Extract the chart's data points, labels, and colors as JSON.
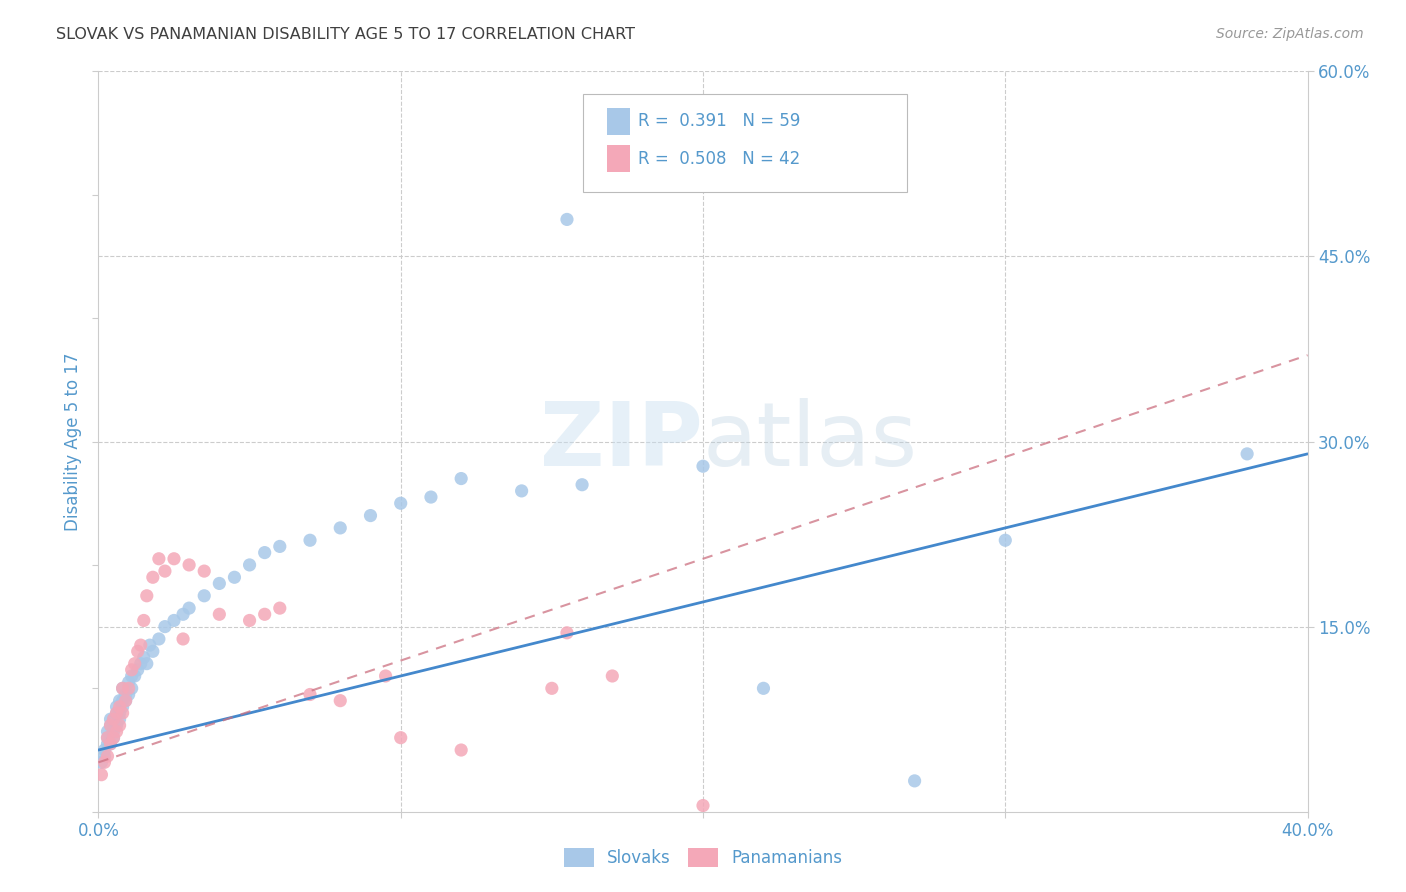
{
  "title": "SLOVAK VS PANAMANIAN DISABILITY AGE 5 TO 17 CORRELATION CHART",
  "source": "Source: ZipAtlas.com",
  "ylabel": "Disability Age 5 to 17",
  "xlim": [
    0.0,
    0.4
  ],
  "ylim": [
    0.0,
    0.6
  ],
  "watermark": "ZIPatlas",
  "legend_R1": "0.391",
  "legend_N1": "59",
  "legend_R2": "0.508",
  "legend_N2": "42",
  "slovak_color": "#a8c8e8",
  "panamanian_color": "#f4a8b8",
  "slovak_line_color": "#4488cc",
  "panamanian_line_color": "#cc7080",
  "background_color": "#ffffff",
  "grid_color": "#cccccc",
  "title_color": "#404040",
  "source_color": "#999999",
  "axis_color": "#5599cc",
  "slovak_x": [
    0.001,
    0.002,
    0.002,
    0.003,
    0.003,
    0.003,
    0.004,
    0.004,
    0.004,
    0.005,
    0.005,
    0.005,
    0.006,
    0.006,
    0.006,
    0.007,
    0.007,
    0.007,
    0.008,
    0.008,
    0.008,
    0.009,
    0.009,
    0.01,
    0.01,
    0.011,
    0.011,
    0.012,
    0.013,
    0.014,
    0.015,
    0.016,
    0.017,
    0.018,
    0.02,
    0.022,
    0.025,
    0.028,
    0.03,
    0.035,
    0.04,
    0.045,
    0.05,
    0.055,
    0.06,
    0.07,
    0.08,
    0.09,
    0.1,
    0.11,
    0.12,
    0.14,
    0.155,
    0.16,
    0.2,
    0.22,
    0.3,
    0.38,
    0.27
  ],
  "slovak_y": [
    0.04,
    0.045,
    0.05,
    0.055,
    0.06,
    0.065,
    0.055,
    0.07,
    0.075,
    0.06,
    0.065,
    0.075,
    0.07,
    0.08,
    0.085,
    0.075,
    0.08,
    0.09,
    0.085,
    0.09,
    0.1,
    0.09,
    0.095,
    0.095,
    0.105,
    0.1,
    0.11,
    0.11,
    0.115,
    0.12,
    0.125,
    0.12,
    0.135,
    0.13,
    0.14,
    0.15,
    0.155,
    0.16,
    0.165,
    0.175,
    0.185,
    0.19,
    0.2,
    0.21,
    0.215,
    0.22,
    0.23,
    0.24,
    0.25,
    0.255,
    0.27,
    0.26,
    0.48,
    0.265,
    0.28,
    0.1,
    0.22,
    0.29,
    0.025
  ],
  "panamanian_x": [
    0.001,
    0.002,
    0.003,
    0.003,
    0.004,
    0.004,
    0.005,
    0.005,
    0.006,
    0.006,
    0.007,
    0.007,
    0.008,
    0.008,
    0.009,
    0.01,
    0.011,
    0.012,
    0.013,
    0.014,
    0.015,
    0.016,
    0.018,
    0.02,
    0.022,
    0.025,
    0.028,
    0.03,
    0.035,
    0.04,
    0.05,
    0.055,
    0.06,
    0.07,
    0.08,
    0.095,
    0.1,
    0.12,
    0.15,
    0.155,
    0.17,
    0.2
  ],
  "panamanian_y": [
    0.03,
    0.04,
    0.045,
    0.06,
    0.055,
    0.07,
    0.06,
    0.075,
    0.065,
    0.08,
    0.07,
    0.085,
    0.08,
    0.1,
    0.09,
    0.1,
    0.115,
    0.12,
    0.13,
    0.135,
    0.155,
    0.175,
    0.19,
    0.205,
    0.195,
    0.205,
    0.14,
    0.2,
    0.195,
    0.16,
    0.155,
    0.16,
    0.165,
    0.095,
    0.09,
    0.11,
    0.06,
    0.05,
    0.1,
    0.145,
    0.11,
    0.005
  ],
  "slovak_line": [
    0.05,
    0.29
  ],
  "panamanian_line": [
    0.04,
    0.37
  ]
}
